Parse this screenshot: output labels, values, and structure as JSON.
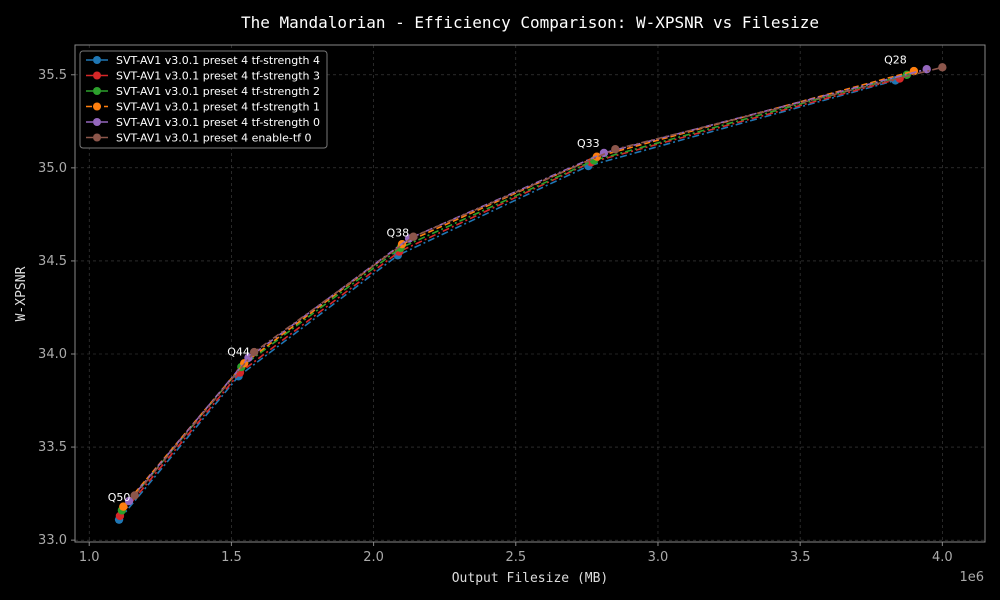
{
  "chart_data": {
    "type": "line",
    "title": "The Mandalorian - Efficiency Comparison: W-XPSNR vs Filesize",
    "xlabel": "Output Filesize (MB)",
    "ylabel": "W-XPSNR",
    "x_offset_label": "1e6",
    "xlim": [
      0.95,
      4.15
    ],
    "ylim": [
      32.99,
      35.66
    ],
    "xticks": [
      1.0,
      1.5,
      2.0,
      2.5,
      3.0,
      3.5,
      4.0
    ],
    "xtick_labels": [
      "1.0",
      "1.5",
      "2.0",
      "2.5",
      "3.0",
      "3.5",
      "4.0"
    ],
    "yticks": [
      33.0,
      33.5,
      34.0,
      34.5,
      35.0,
      35.5
    ],
    "ytick_labels": [
      "33.0",
      "33.5",
      "34.0",
      "34.5",
      "35.0",
      "35.5"
    ],
    "grid": true,
    "legend_position": "top-left",
    "series": [
      {
        "name": "SVT-AV1 v3.0.1 preset 4 tf-strength 4",
        "color": "#1f77b4",
        "dash": "dashdot",
        "x": [
          1.105,
          1.525,
          2.085,
          2.755,
          3.835
        ],
        "y": [
          33.11,
          33.88,
          34.53,
          35.01,
          35.47
        ]
      },
      {
        "name": "SVT-AV1 v3.0.1 preset 4 tf-strength 3",
        "color": "#d62728",
        "dash": "dashdot",
        "x": [
          1.108,
          1.53,
          2.09,
          2.765,
          3.85
        ],
        "y": [
          33.13,
          33.9,
          34.55,
          35.03,
          35.48
        ]
      },
      {
        "name": "SVT-AV1 v3.0.1 preset 4 tf-strength 2",
        "color": "#2ca02c",
        "dash": "dashdot",
        "x": [
          1.115,
          1.535,
          2.095,
          2.775,
          3.875
        ],
        "y": [
          33.16,
          33.93,
          34.57,
          35.04,
          35.5
        ]
      },
      {
        "name": "SVT-AV1 v3.0.1 preset 4 tf-strength 1",
        "color": "#ff7f0e",
        "dash": "dash",
        "x": [
          1.12,
          1.545,
          2.1,
          2.785,
          3.9
        ],
        "y": [
          33.18,
          33.95,
          34.59,
          35.06,
          35.52
        ]
      },
      {
        "name": "SVT-AV1 v3.0.1 preset 4 tf-strength 0",
        "color": "#9467bd",
        "dash": "dashdot",
        "x": [
          1.14,
          1.56,
          2.125,
          2.81,
          3.945
        ],
        "y": [
          33.21,
          33.98,
          34.62,
          35.08,
          35.53
        ]
      },
      {
        "name": "SVT-AV1 v3.0.1 preset 4 enable-tf 0",
        "color": "#8c564b",
        "dash": "dashdot",
        "x": [
          1.16,
          1.58,
          2.14,
          2.85,
          4.0
        ],
        "y": [
          33.24,
          34.01,
          34.63,
          35.1,
          35.54
        ]
      }
    ],
    "annotations": [
      {
        "text": "Q50",
        "x": 1.105,
        "y": 33.2
      },
      {
        "text": "Q44",
        "x": 1.525,
        "y": 33.98
      },
      {
        "text": "Q38",
        "x": 2.085,
        "y": 34.62
      },
      {
        "text": "Q33",
        "x": 2.755,
        "y": 35.1
      },
      {
        "text": "Q28",
        "x": 3.835,
        "y": 35.55
      }
    ]
  }
}
